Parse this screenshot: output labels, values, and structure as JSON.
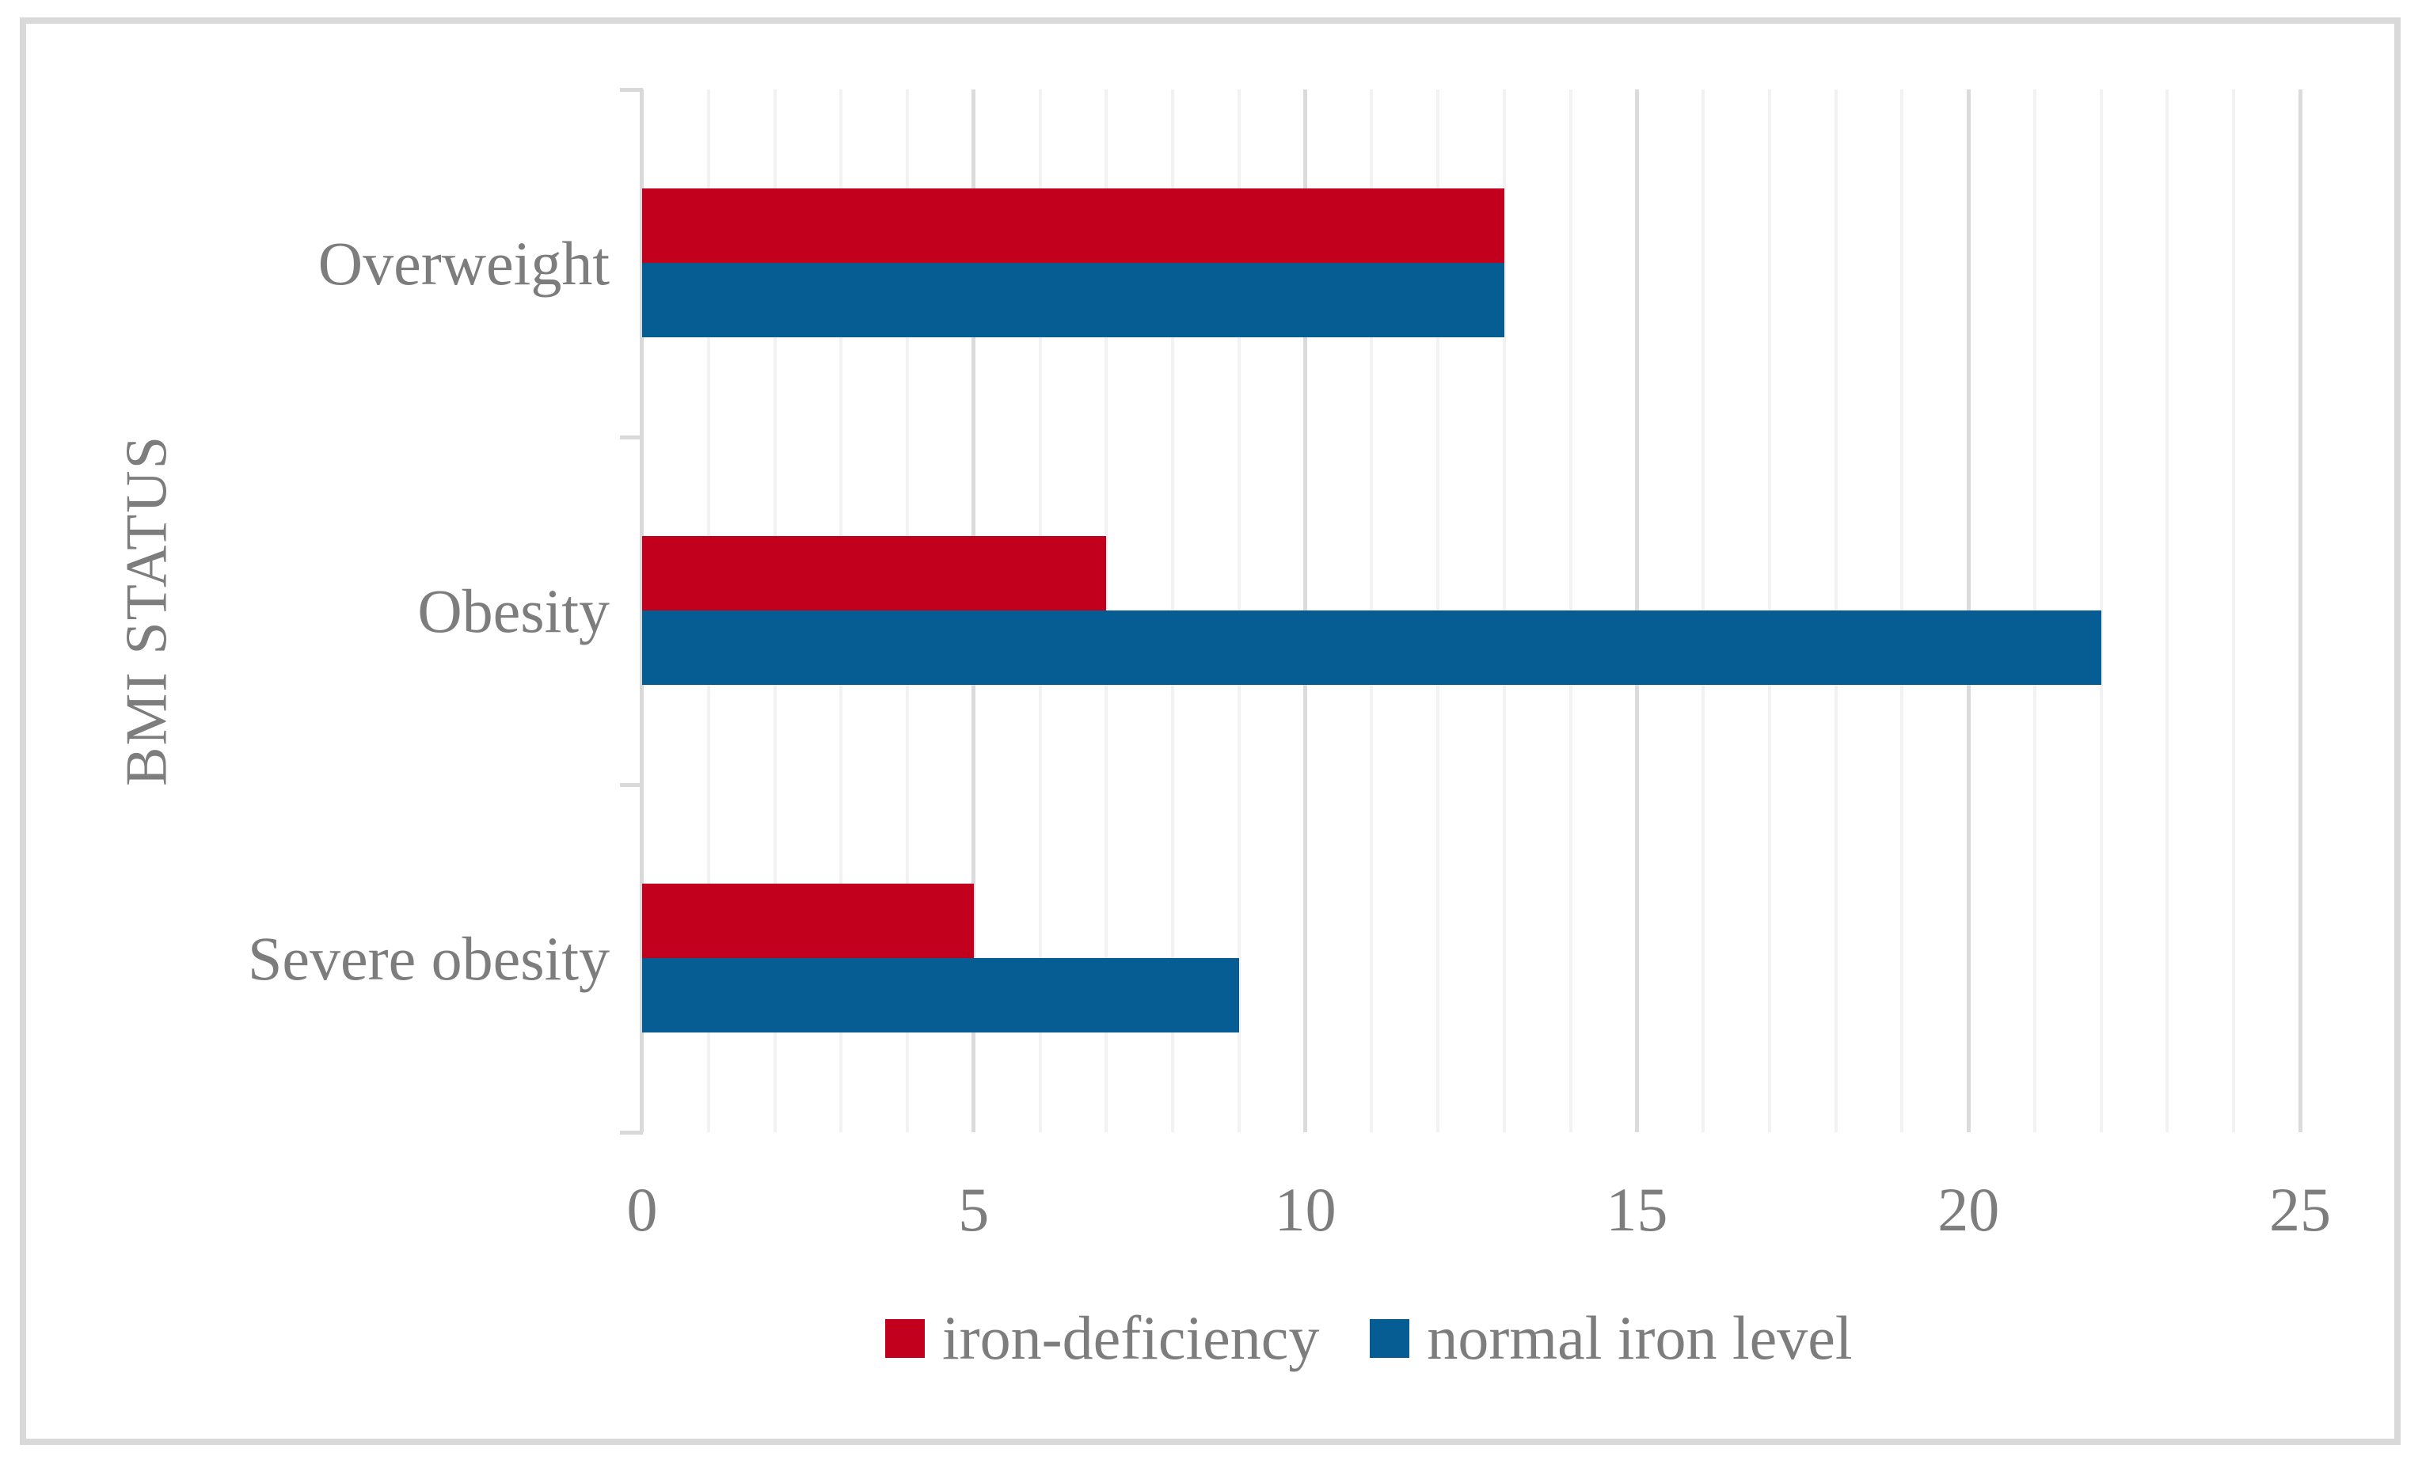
{
  "chart_data": {
    "type": "bar",
    "orientation": "horizontal",
    "title": "",
    "categories": [
      "Overweight",
      "Obesity",
      "Severe obesity"
    ],
    "series": [
      {
        "name": "iron-deficiency",
        "color": "#C2001E",
        "values": [
          13,
          7,
          5
        ]
      },
      {
        "name": "normal iron level",
        "color": "#065D94",
        "values": [
          13,
          22,
          9
        ]
      }
    ],
    "xlabel": "",
    "ylabel": "BMI STATUS",
    "xlim": [
      0,
      25
    ],
    "x_ticks": [
      0,
      5,
      10,
      15,
      20,
      25
    ],
    "grid": "vertical minor gridlines every 1 unit, major gridlines every 5 units",
    "legend_position": "bottom"
  },
  "axis": {
    "y_title": "BMI STATUS",
    "x_tick_labels": [
      "0",
      "5",
      "10",
      "15",
      "20",
      "25"
    ]
  },
  "legend": {
    "items": [
      {
        "label": "iron-deficiency",
        "color": "#C2001E"
      },
      {
        "label": "normal iron level",
        "color": "#065D94"
      }
    ]
  },
  "colors": {
    "grid_minor": "#F2F2F2",
    "grid_major": "#DBDBDB",
    "axis_line": "#D9D9D9",
    "frame_border": "#D9D9D9",
    "text": "#7D7D7D",
    "background": "#FFFFFF"
  }
}
